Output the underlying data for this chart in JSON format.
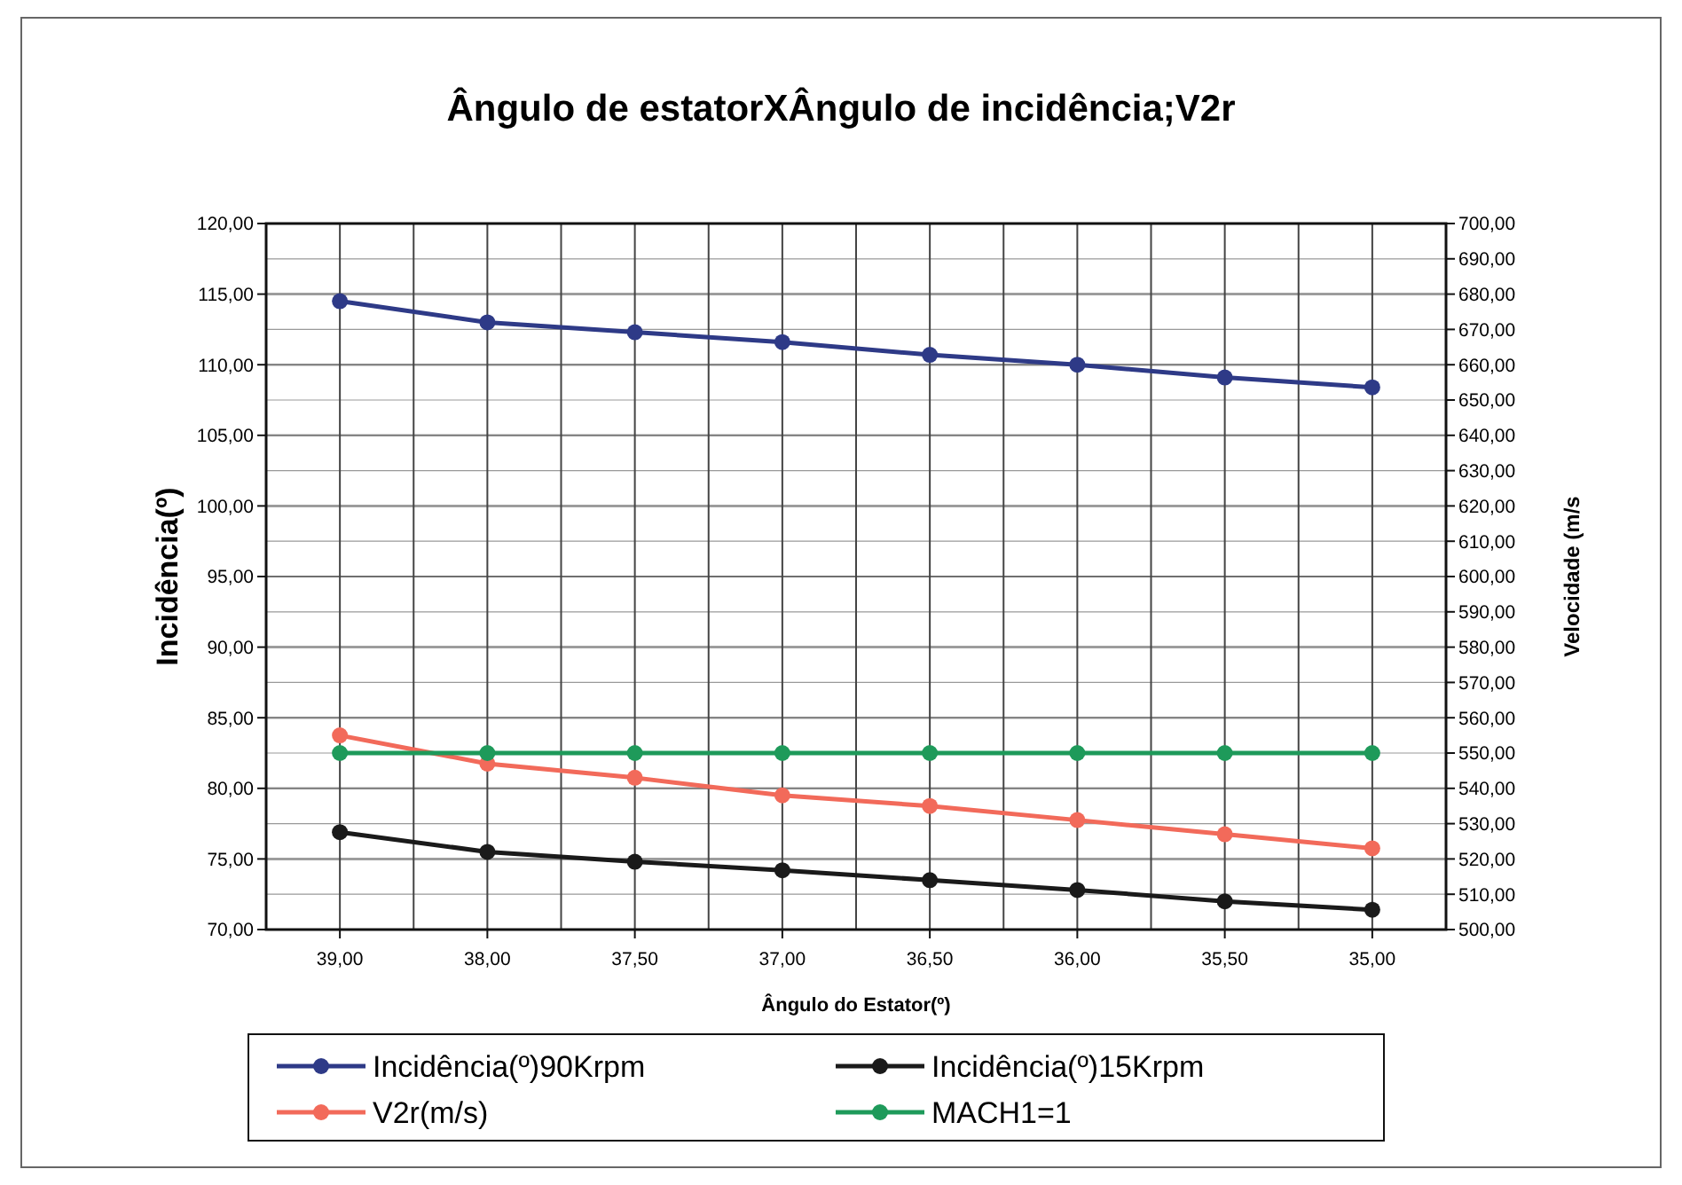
{
  "chart_data": {
    "type": "line",
    "title": "Ângulo de estatorXÂngulo de incidência;V2r",
    "xlabel": "Ângulo do Estator(º)",
    "ylabel": "Incidência(º)",
    "y2label": "Velocidade  (m/s",
    "categories": [
      "39,00",
      "38,00",
      "37,50",
      "37,00",
      "36,50",
      "36,00",
      "35,50",
      "35,00"
    ],
    "series": [
      {
        "name": "Incidência(º)90Krpm",
        "color": "#2e3a87",
        "values": [
          114.5,
          113.0,
          112.3,
          111.6,
          110.7,
          110.0,
          109.1,
          108.4
        ]
      },
      {
        "name": "Incidência(º)15Krpm",
        "color": "#1a1a1a",
        "values": [
          76.9,
          75.5,
          74.8,
          74.2,
          73.5,
          72.8,
          72.0,
          71.4
        ]
      },
      {
        "name": "V2r(m/s)",
        "color": "#f26a5a",
        "axis": "y2",
        "values": [
          555,
          547,
          543,
          538,
          535,
          531,
          527,
          523
        ]
      },
      {
        "name": "MACH1=1",
        "color": "#1e9a5a",
        "axis": "y2",
        "values": [
          550,
          550,
          550,
          550,
          550,
          550,
          550,
          550
        ]
      }
    ],
    "ylim": [
      70,
      120
    ],
    "yticks": [
      {
        "value": 70,
        "label": "70,00"
      },
      {
        "value": 75,
        "label": "75,00"
      },
      {
        "value": 80,
        "label": "80,00"
      },
      {
        "value": 85,
        "label": "85,00"
      },
      {
        "value": 90,
        "label": "90,00"
      },
      {
        "value": 95,
        "label": "95,00"
      },
      {
        "value": 100,
        "label": "100,00"
      },
      {
        "value": 105,
        "label": "105,00"
      },
      {
        "value": 110,
        "label": "110,00"
      },
      {
        "value": 115,
        "label": "115,00"
      },
      {
        "value": 120,
        "label": "120,00"
      }
    ],
    "y2lim": [
      500,
      700
    ],
    "y2ticks": [
      {
        "value": 500,
        "label": "500,00"
      },
      {
        "value": 510,
        "label": "510,00"
      },
      {
        "value": 520,
        "label": "520,00"
      },
      {
        "value": 530,
        "label": "530,00"
      },
      {
        "value": 540,
        "label": "540,00"
      },
      {
        "value": 550,
        "label": "550,00"
      },
      {
        "value": 560,
        "label": "560,00"
      },
      {
        "value": 570,
        "label": "570,00"
      },
      {
        "value": 580,
        "label": "580,00"
      },
      {
        "value": 590,
        "label": "590,00"
      },
      {
        "value": 600,
        "label": "600,00"
      },
      {
        "value": 610,
        "label": "610,00"
      },
      {
        "value": 620,
        "label": "620,00"
      },
      {
        "value": 630,
        "label": "630,00"
      },
      {
        "value": 640,
        "label": "640,00"
      },
      {
        "value": 650,
        "label": "650,00"
      },
      {
        "value": 660,
        "label": "660,00"
      },
      {
        "value": 670,
        "label": "670,00"
      },
      {
        "value": 680,
        "label": "680,00"
      },
      {
        "value": 690,
        "label": "690,00"
      },
      {
        "value": 700,
        "label": "700,00"
      }
    ],
    "grid": true,
    "legend": "bottom",
    "marker": "circle",
    "line_style": "solid"
  }
}
